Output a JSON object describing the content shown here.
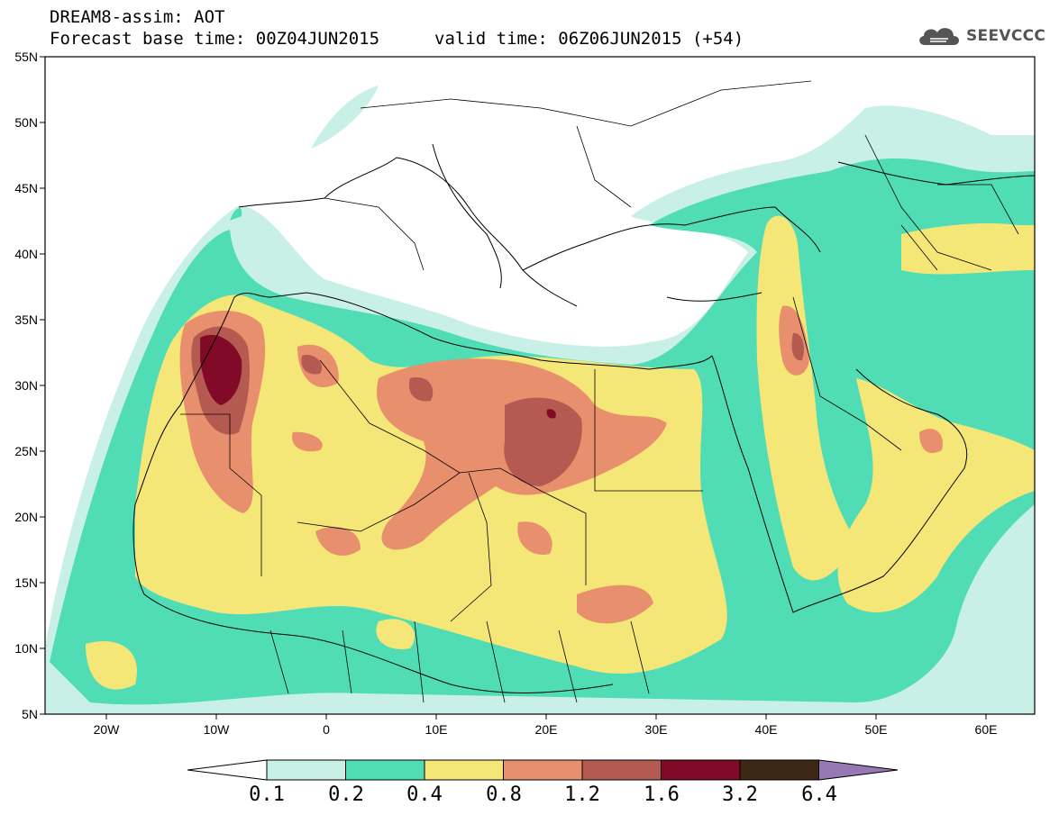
{
  "title": {
    "line1": "DREAM8-assim: AOT",
    "line2": "Forecast base time: 00Z04JUN2015",
    "line2b": "valid time: 06Z06JUN2015 (+54)"
  },
  "logo": {
    "text": "SEEVCCC",
    "icon": "cloud-icon"
  },
  "map": {
    "region": "North Africa, Mediterranean, Middle East",
    "lon_range": [
      -25,
      65
    ],
    "lat_range": [
      5,
      55
    ],
    "y_ticks": [
      "55N",
      "50N",
      "45N",
      "40N",
      "35N",
      "30N",
      "25N",
      "20N",
      "15N",
      "10N",
      "5N"
    ],
    "x_ticks": [
      "20W",
      "10W",
      "0",
      "10E",
      "20E",
      "30E",
      "40E",
      "50E",
      "60E"
    ],
    "variable": "AOT"
  },
  "colorbar": {
    "labels": [
      "0.1",
      "0.2",
      "0.4",
      "0.8",
      "1.2",
      "1.6",
      "3.2",
      "6.4"
    ],
    "colors": [
      "#ffffff",
      "#c8f0e6",
      "#50dcb4",
      "#f5e678",
      "#e8906e",
      "#b45a50",
      "#800a28",
      "#3c2814",
      "#9678b4"
    ]
  }
}
